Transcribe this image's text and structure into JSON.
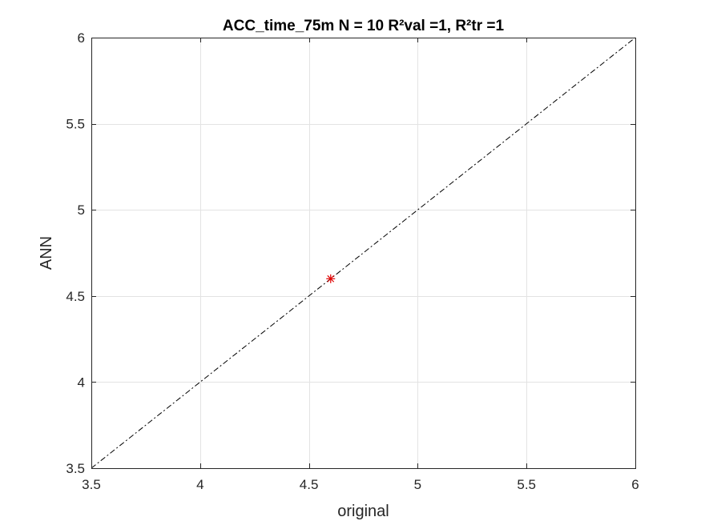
{
  "chart_data": {
    "type": "scatter",
    "title": "ACC_time_75m  N = 10 R²val =1, R²tr =1",
    "xlabel": "original",
    "ylabel": "ANN",
    "xlim": [
      3.5,
      6
    ],
    "ylim": [
      3.5,
      6
    ],
    "xticks": [
      3.5,
      4,
      4.5,
      5,
      5.5,
      6
    ],
    "yticks": [
      3.5,
      4,
      4.5,
      5,
      5.5,
      6
    ],
    "xtick_labels": [
      "3.5",
      "4",
      "4.5",
      "5",
      "5.5",
      "6"
    ],
    "ytick_labels": [
      "3.5",
      "4",
      "4.5",
      "5",
      "5.5",
      "6"
    ],
    "grid": true,
    "reference_line": {
      "style": "dash-dot",
      "color": "#000000",
      "x": [
        3.5,
        6
      ],
      "y": [
        3.5,
        6
      ]
    },
    "series": [
      {
        "marker": "asterisk",
        "color": "#e00000",
        "x": [
          4.6
        ],
        "y": [
          4.6
        ]
      }
    ]
  }
}
